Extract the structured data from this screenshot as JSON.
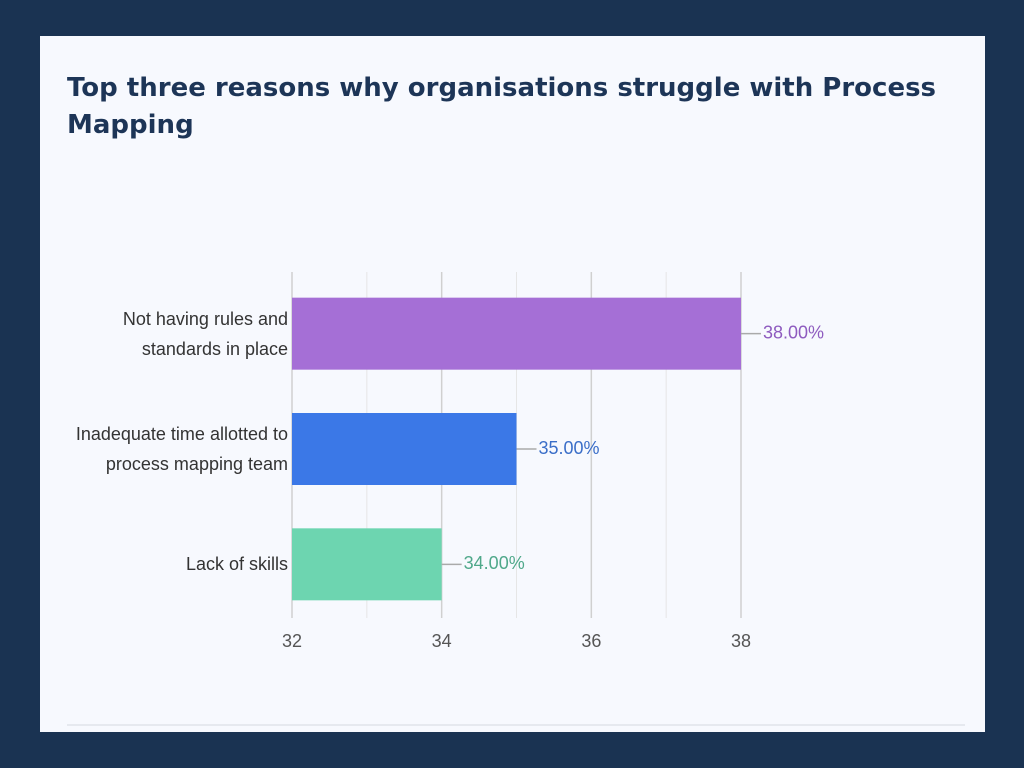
{
  "chart_data": {
    "type": "bar",
    "orientation": "horizontal",
    "title": "Top three reasons why organisations struggle with Process Mapping",
    "categories": [
      "Not having rules and standards in place",
      "Inadequate time allotted to process mapping team",
      "Lack of skills"
    ],
    "values": [
      38,
      35,
      34
    ],
    "value_labels": [
      "38.00%",
      "35.00%",
      "34.00%"
    ],
    "colors": [
      "#a56fd6",
      "#3b78e7",
      "#6dd5b0"
    ],
    "label_colors": [
      "#8e5bbf",
      "#3a6ec8",
      "#4fa88a"
    ],
    "xlim": [
      32,
      38
    ],
    "xticks": [
      32,
      34,
      36,
      38
    ],
    "xminorticks": [
      33,
      35,
      37
    ],
    "grid": true
  }
}
